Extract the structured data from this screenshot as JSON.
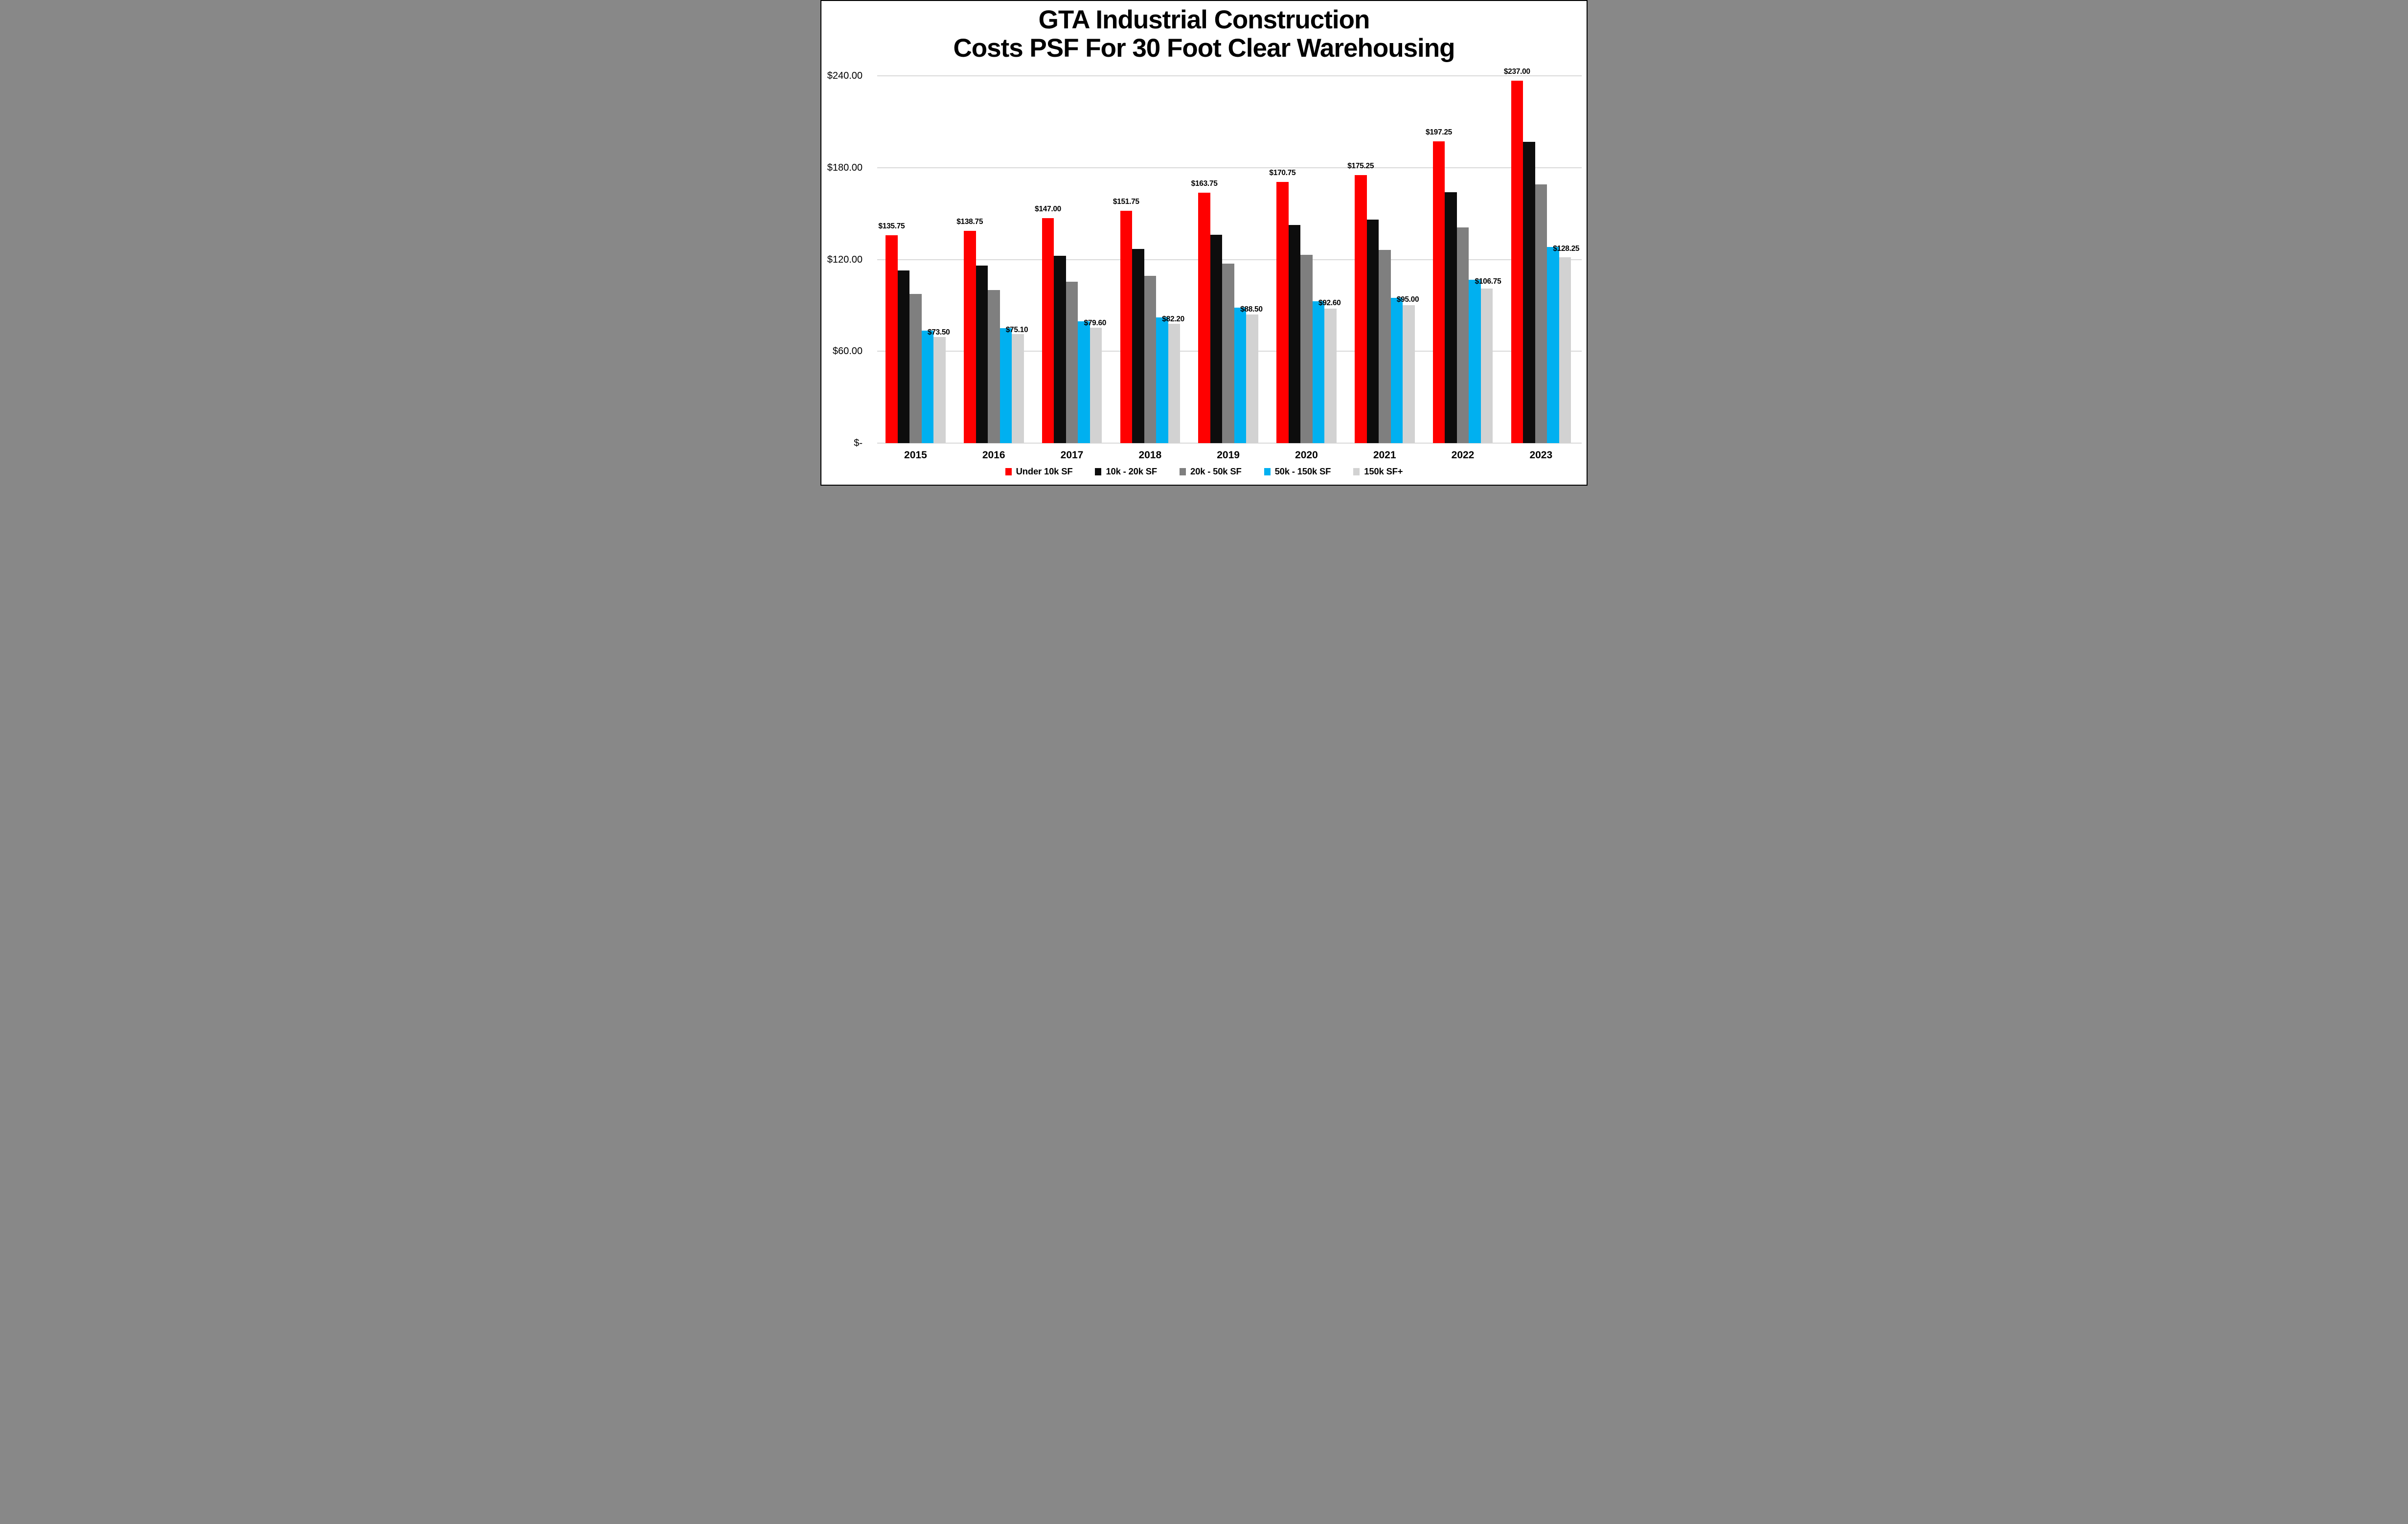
{
  "title": {
    "line1": "GTA Industrial Construction",
    "line2": "Costs PSF For 30 Foot Clear Warehousing"
  },
  "chart_data": {
    "type": "bar",
    "title": "GTA Industrial Construction Costs PSF For 30 Foot Clear Warehousing",
    "categories": [
      "2015",
      "2016",
      "2017",
      "2018",
      "2019",
      "2020",
      "2021",
      "2022",
      "2023"
    ],
    "series": [
      {
        "name": "Under 10k SF",
        "color": "#FF0000",
        "values": [
          135.75,
          138.75,
          147.0,
          151.75,
          163.75,
          170.75,
          175.25,
          197.25,
          237.0
        ],
        "data_labels": [
          "$135.75",
          "$138.75",
          "$147.00",
          "$151.75",
          "$163.75",
          "$170.75",
          "$175.25",
          "$197.25",
          "$237.00"
        ]
      },
      {
        "name": "10k - 20k SF",
        "color": "#0D0D0D",
        "values": [
          113.0,
          116.0,
          122.5,
          127.0,
          136.25,
          142.5,
          146.25,
          164.0,
          197.0
        ],
        "data_labels": null
      },
      {
        "name": "20k - 50k SF",
        "color": "#7F7F7F",
        "values": [
          97.5,
          100.0,
          105.5,
          109.25,
          117.25,
          123.0,
          126.25,
          141.0,
          169.0
        ],
        "data_labels": null
      },
      {
        "name": "50k - 150k SF",
        "color": "#00B0F0",
        "values": [
          73.5,
          75.1,
          79.6,
          82.2,
          88.5,
          92.6,
          95.0,
          106.75,
          128.25
        ],
        "data_labels": [
          "$73.50",
          "$75.10",
          "$79.60",
          "$82.20",
          "$88.50",
          "$92.60",
          "$95.00",
          "$106.75",
          "$128.25"
        ]
      },
      {
        "name": "150k SF+",
        "color": "#D2D2D2",
        "values": [
          69.5,
          71.25,
          75.5,
          78.0,
          84.0,
          88.0,
          90.25,
          101.0,
          121.5
        ],
        "data_labels": null
      }
    ],
    "y_axis": {
      "min": 0,
      "max": 240,
      "tick_interval": 60,
      "ticks": [
        {
          "label": "$240.00",
          "value": 240
        },
        {
          "label": "$180.00",
          "value": 180
        },
        {
          "label": "$120.00",
          "value": 120
        },
        {
          "label": "$60.00",
          "value": 60
        },
        {
          "label": "$-",
          "value": 0
        }
      ],
      "grid": true,
      "gridline_color": "#D9D9D9"
    },
    "legend_position": "bottom"
  }
}
